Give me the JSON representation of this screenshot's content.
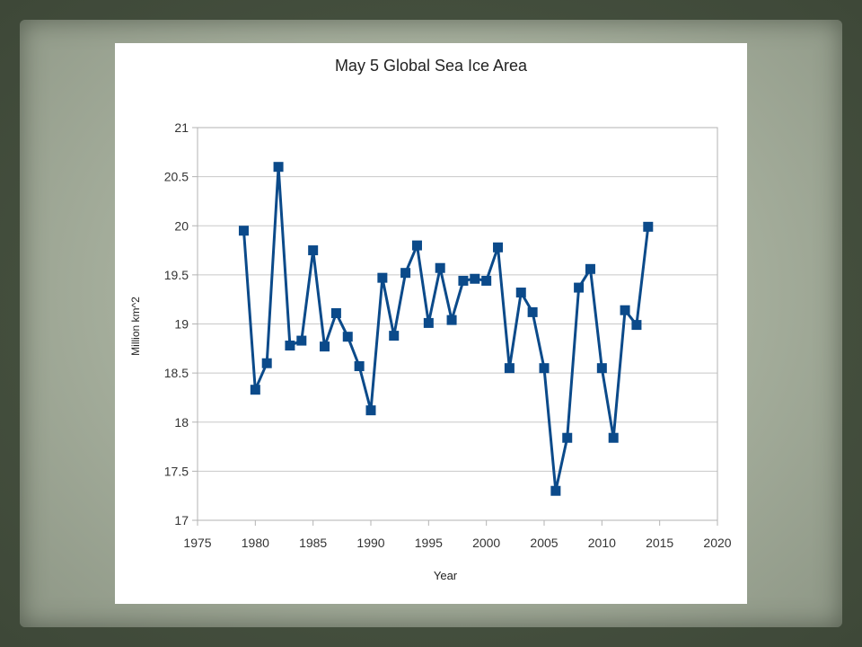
{
  "chart_data": {
    "type": "line",
    "title": "May 5 Global Sea Ice Area",
    "xlabel": "Year",
    "ylabel": "Million km^2",
    "xlim": [
      1975,
      2020
    ],
    "ylim": [
      17,
      21
    ],
    "xticks": [
      "1975",
      "1980",
      "1985",
      "1990",
      "1995",
      "2000",
      "2005",
      "2010",
      "2015",
      "2020"
    ],
    "yticks": [
      "17",
      "17.5",
      "18",
      "18.5",
      "19",
      "19.5",
      "20",
      "20.5",
      "21"
    ],
    "grid": true,
    "series": [
      {
        "name": "Global Sea Ice Area",
        "color": "#0b4a8a",
        "marker": "square",
        "x": [
          1979,
          1980,
          1981,
          1982,
          1983,
          1984,
          1985,
          1986,
          1987,
          1988,
          1989,
          1990,
          1991,
          1992,
          1993,
          1994,
          1995,
          1996,
          1997,
          1998,
          1999,
          2000,
          2001,
          2002,
          2003,
          2004,
          2005,
          2006,
          2007,
          2008,
          2009,
          2010,
          2011,
          2012,
          2013,
          2014
        ],
        "y": [
          19.95,
          18.33,
          18.6,
          20.6,
          18.78,
          18.83,
          19.75,
          18.77,
          19.11,
          18.87,
          18.57,
          18.12,
          19.47,
          18.88,
          19.52,
          19.8,
          19.01,
          19.57,
          19.04,
          19.44,
          19.46,
          19.44,
          19.78,
          18.55,
          19.32,
          19.12,
          18.55,
          17.3,
          17.84,
          19.37,
          19.56,
          18.55,
          17.84,
          19.14,
          18.99,
          19.99
        ]
      }
    ]
  }
}
